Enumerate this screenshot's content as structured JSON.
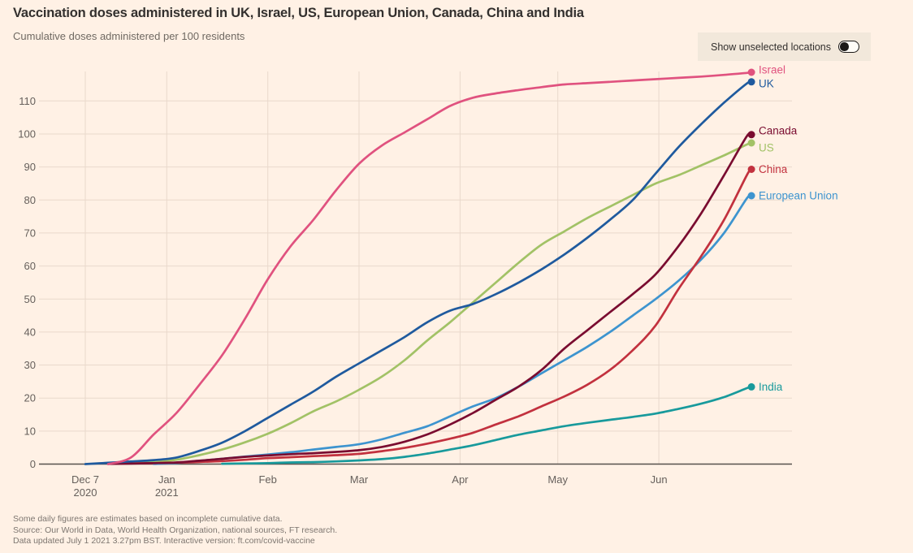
{
  "header": {
    "title": "Vaccination doses administered in UK, Israel, US, European Union, Canada, China and India",
    "subtitle": "Cumulative doses administered per 100 residents"
  },
  "toggle": {
    "label": "Show unselected locations",
    "state": "off"
  },
  "chart_data": {
    "type": "line",
    "title": "Vaccination doses administered in UK, Israel, US, European Union, Canada, China and India",
    "subtitle": "Cumulative doses administered per 100 residents",
    "xlabel": "",
    "ylabel": "Cumulative doses administered per 100 residents",
    "ylim": [
      0,
      119
    ],
    "grid": true,
    "legend_position": "right-end-labels",
    "x_dates": [
      "Dec 7",
      "Dec 14",
      "Dec 21",
      "Dec 28",
      "Jan 4",
      "Jan 11",
      "Jan 18",
      "Jan 25",
      "Feb 1",
      "Feb 8",
      "Feb 15",
      "Feb 22",
      "Mar 1",
      "Mar 8",
      "Mar 15",
      "Mar 22",
      "Mar 29",
      "Apr 5",
      "Apr 12",
      "Apr 19",
      "Apr 26",
      "May 3",
      "May 10",
      "May 17",
      "May 24",
      "May 31",
      "Jun 7",
      "Jun 14",
      "Jun 21",
      "Jun 28"
    ],
    "yticks": [
      0,
      10,
      20,
      30,
      40,
      50,
      60,
      70,
      80,
      90,
      100,
      110
    ],
    "xticks": [
      {
        "label": "Dec 7",
        "sublabel": "2020",
        "day": 0
      },
      {
        "label": "Jan",
        "sublabel": "2021",
        "day": 25
      },
      {
        "label": "Feb",
        "sublabel": "",
        "day": 56
      },
      {
        "label": "Mar",
        "sublabel": "",
        "day": 84
      },
      {
        "label": "Apr",
        "sublabel": "",
        "day": 115
      },
      {
        "label": "May",
        "sublabel": "",
        "day": 145
      },
      {
        "label": "Jun",
        "sublabel": "",
        "day": 176
      }
    ],
    "series": [
      {
        "name": "US",
        "color": "#a2c266",
        "end_value": 97.3,
        "label_dy": 6,
        "values": [
          null,
          0.05,
          0.3,
          0.7,
          1.3,
          2.7,
          4.4,
          6.6,
          9.2,
          12.4,
          16,
          19,
          22.5,
          26.5,
          31.5,
          37.5,
          43,
          49,
          55,
          61,
          66.5,
          70.5,
          74.5,
          78,
          81.5,
          85,
          87.5,
          90.5,
          93.5,
          96.8
        ]
      },
      {
        "name": "European Union",
        "color": "#3d94cf",
        "end_value": 81.3,
        "label_dy": 0,
        "values": [
          null,
          null,
          null,
          0.05,
          0.35,
          1,
          1.6,
          2.3,
          2.9,
          3.6,
          4.4,
          5.2,
          6,
          7.5,
          9.5,
          11.5,
          14.5,
          17.5,
          20,
          23.5,
          27.5,
          31.5,
          35.5,
          40,
          45,
          50,
          55.5,
          62,
          70,
          80.5
        ]
      },
      {
        "name": "China",
        "color": "#c2313e",
        "end_value": 89.3,
        "label_dy": 0,
        "values": [
          null,
          0.1,
          0.2,
          0.3,
          0.45,
          0.65,
          0.9,
          1.3,
          1.8,
          2.1,
          2.4,
          2.7,
          3.1,
          3.9,
          4.9,
          6.2,
          7.7,
          9.5,
          12,
          14.5,
          17.5,
          20.5,
          24,
          28.5,
          34.5,
          42,
          53,
          63,
          74,
          87.5
        ]
      },
      {
        "name": "India",
        "color": "#189a9c",
        "end_value": 23.4,
        "label_dy": 0,
        "values": [
          null,
          null,
          null,
          null,
          null,
          null,
          0.1,
          0.2,
          0.3,
          0.5,
          0.6,
          0.8,
          1.1,
          1.5,
          2.2,
          3.2,
          4.4,
          5.7,
          7.3,
          8.9,
          10.2,
          11.5,
          12.5,
          13.4,
          14.3,
          15.3,
          16.7,
          18.3,
          20.3,
          23
        ]
      },
      {
        "name": "Canada",
        "color": "#7a0c30",
        "end_value": 99.8,
        "label_dy": -5,
        "values": [
          null,
          0.05,
          0.15,
          0.3,
          0.5,
          1,
          1.6,
          2.2,
          2.6,
          3,
          3.3,
          3.7,
          4.2,
          5.2,
          6.8,
          9,
          12,
          15.5,
          19.5,
          23.5,
          28.5,
          35,
          40.5,
          46,
          51.5,
          57.5,
          66,
          76,
          87.5,
          99.3
        ]
      },
      {
        "name": "UK",
        "color": "#1f5a9e",
        "end_value": 115.8,
        "label_dy": 2,
        "values": [
          0,
          0.4,
          0.8,
          1.2,
          2,
          4,
          6.5,
          10,
          14,
          18,
          22,
          26.5,
          30.5,
          34.5,
          38.5,
          43,
          46.5,
          48.5,
          51.5,
          55,
          59,
          63.5,
          68.5,
          74,
          80,
          88,
          96,
          103,
          109.5,
          115.3
        ]
      },
      {
        "name": "Israel",
        "color": "#e0527f",
        "end_value": 118.7,
        "label_dy": -3,
        "values": [
          null,
          0,
          2,
          9,
          15.5,
          24,
          33,
          44,
          56,
          66,
          74,
          83,
          91,
          96.5,
          100.5,
          104.5,
          108.5,
          111,
          112.3,
          113.3,
          114.2,
          115,
          115.4,
          115.8,
          116.2,
          116.6,
          117,
          117.4,
          117.9,
          118.5
        ]
      }
    ]
  },
  "footer": {
    "lines": [
      "Some daily figures are estimates based on incomplete cumulative data.",
      "Source: Our World in Data, World Health Organization, national sources, FT research.",
      "Data updated July 1 2021 3.27pm BST. Interactive version: ft.com/covid-vaccine"
    ]
  },
  "colors": {
    "background": "#fff1e5",
    "grid": "#e9d9cc",
    "axis": "#57514d",
    "tick_text": "#66605c",
    "title_text": "#33302e",
    "footer_text": "#7d7670",
    "toggle_bg": "#f2e8db"
  }
}
